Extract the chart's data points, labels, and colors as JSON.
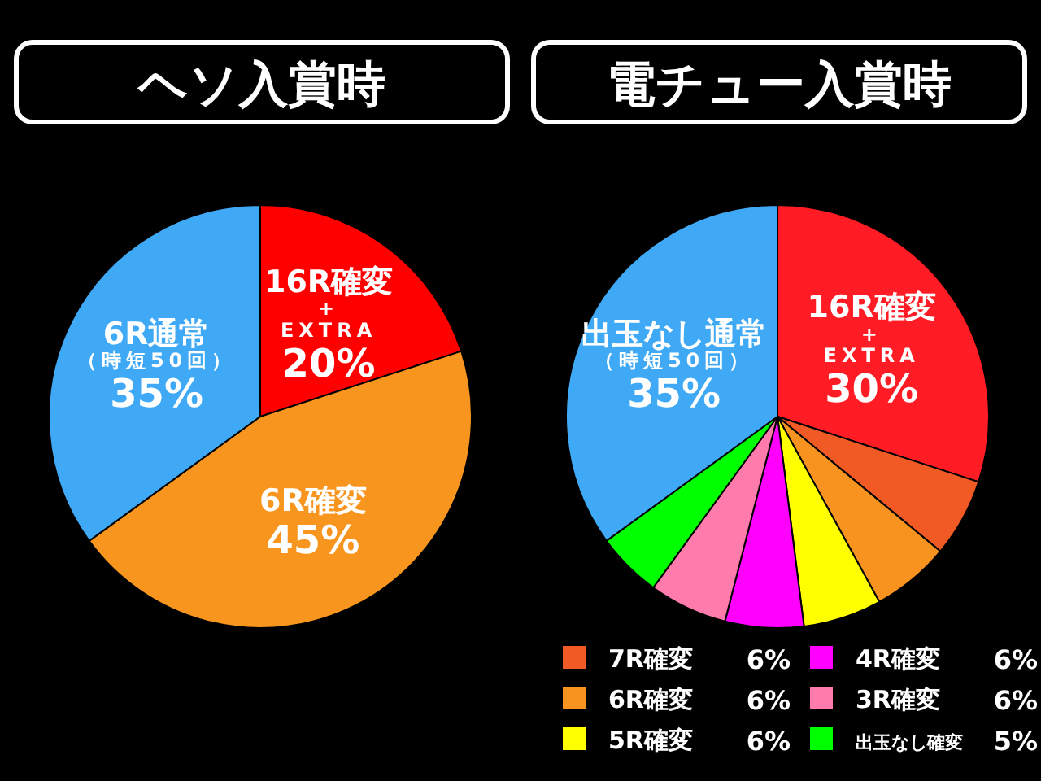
{
  "chart_data": [
    {
      "type": "pie",
      "title": "ヘソ入賞時",
      "categories": [
        "16R確変\n+\nEXTRA",
        "6R確変",
        "6R通常（時短50回）"
      ],
      "values": [
        20,
        45,
        35
      ],
      "colors": [
        "#ff0000",
        "#f7951e",
        "#3fa9f5"
      ],
      "value_labels": [
        "20%",
        "45%",
        "35%"
      ]
    },
    {
      "type": "pie",
      "title": "電チュー入賞時",
      "categories": [
        "16R確変\n+\nEXTRA",
        "7R確変",
        "6R確変",
        "5R確変",
        "4R確変",
        "3R確変",
        "出玉なし確変",
        "出玉なし通常（時短50回）"
      ],
      "values": [
        30,
        6,
        6,
        6,
        6,
        6,
        5,
        35
      ],
      "colors": [
        "#ff1c24",
        "#f15a24",
        "#f7931e",
        "#ffff00",
        "#ff00ff",
        "#ff7bac",
        "#00ff00",
        "#3fa9f5"
      ],
      "value_labels": [
        "30%",
        "6%",
        "6%",
        "6%",
        "6%",
        "6%",
        "5%",
        "35%"
      ],
      "legend": "bottom right"
    }
  ]
}
